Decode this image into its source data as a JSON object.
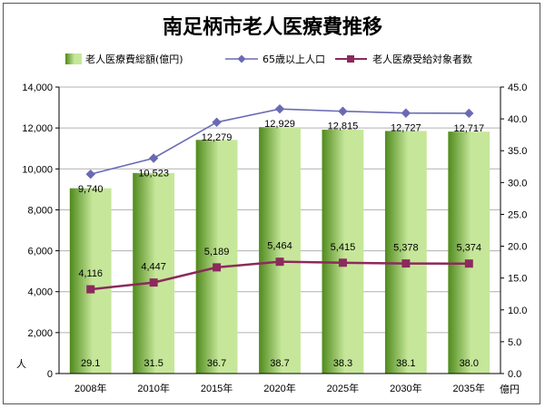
{
  "title": "南足柄市老人医療費推移",
  "legend": {
    "bars": "老人医療費総額(億円)",
    "line1": "65歳以上人口",
    "line2": "老人医療受給対象者数"
  },
  "y_left_unit": "人",
  "y_right_unit": "億円",
  "colors": {
    "bar_dark": "#4f8a1c",
    "bar_light": "#c6e79a",
    "line1": "#6a6ab4",
    "line2": "#8b2a5c",
    "grid": "#b0b0b0"
  },
  "chart_data": {
    "type": "bar",
    "categories": [
      "2008年",
      "2010年",
      "2015年",
      "2020年",
      "2025年",
      "2030年",
      "2035年"
    ],
    "series": [
      {
        "name": "老人医療費総額(億円)",
        "type": "bar",
        "axis": "right",
        "values": [
          29.1,
          31.5,
          36.7,
          38.7,
          38.3,
          38.1,
          38.0
        ],
        "labels": [
          "29.1",
          "31.5",
          "36.7",
          "38.7",
          "38.3",
          "38.1",
          "38.0"
        ]
      },
      {
        "name": "65歳以上人口",
        "type": "line",
        "axis": "left",
        "values": [
          9740,
          10523,
          12279,
          12929,
          12815,
          12727,
          12717
        ],
        "labels": [
          "9,740",
          "10,523",
          "12,279",
          "12,929",
          "12,815",
          "12,727",
          "12,717"
        ]
      },
      {
        "name": "老人医療受給対象者数",
        "type": "line",
        "axis": "left",
        "values": [
          4116,
          4447,
          5189,
          5464,
          5415,
          5378,
          5374
        ],
        "labels": [
          "4,116",
          "4,447",
          "5,189",
          "5,464",
          "5,415",
          "5,378",
          "5,374"
        ]
      }
    ],
    "y_left": {
      "lim": [
        0,
        14000
      ],
      "ticks": [
        0,
        2000,
        4000,
        6000,
        8000,
        10000,
        12000,
        14000
      ],
      "tick_labels": [
        "0",
        "2,000",
        "4,000",
        "6,000",
        "8,000",
        "10,000",
        "12,000",
        "14,000"
      ]
    },
    "y_right": {
      "lim": [
        0,
        45
      ],
      "ticks": [
        0,
        5,
        10,
        15,
        20,
        25,
        30,
        35,
        40,
        45
      ],
      "tick_labels": [
        "0.0",
        "5.0",
        "10.0",
        "15.0",
        "20.0",
        "25.0",
        "30.0",
        "35.0",
        "40.0",
        "45.0"
      ]
    },
    "grid": true,
    "legend_position": "top"
  }
}
